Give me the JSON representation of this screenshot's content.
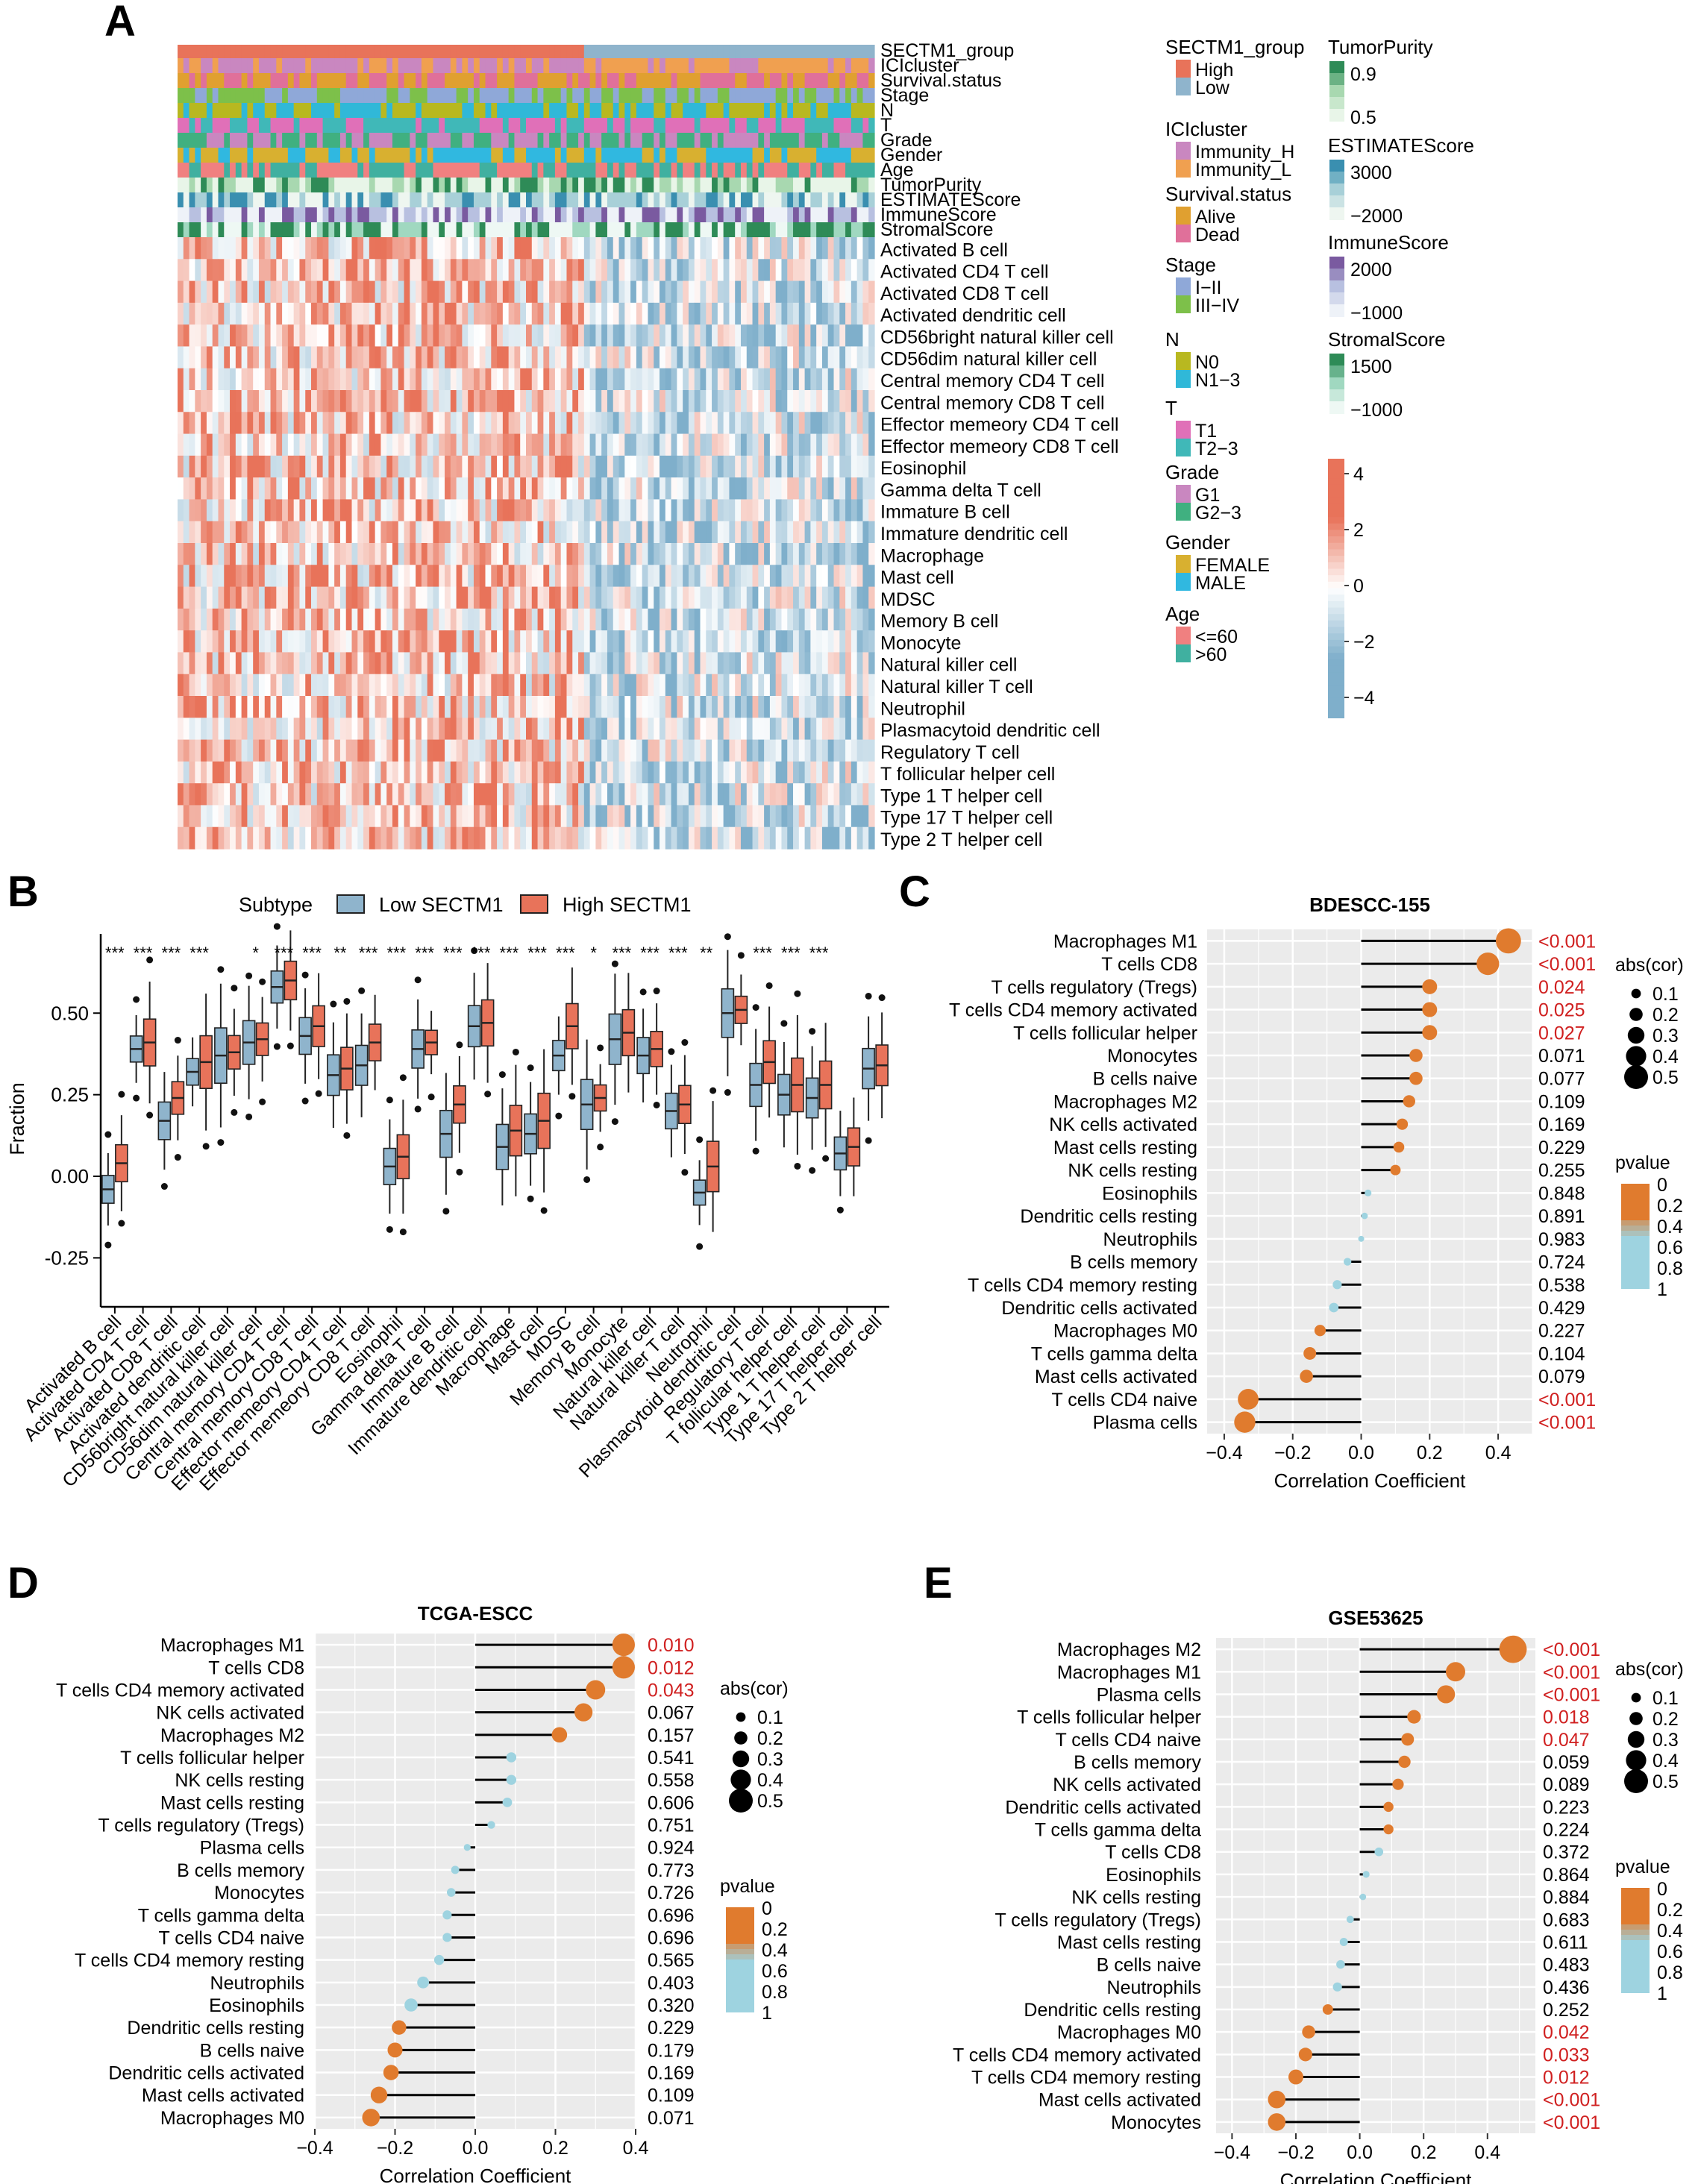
{
  "panel_letters": [
    "A",
    "B",
    "C",
    "D",
    "E"
  ],
  "colors": {
    "high": "#E8735A",
    "low": "#8FB4CC",
    "orange": "#E07B2E",
    "lightblue": "#9ED3E0",
    "sig_red": "#D02020",
    "gridbg": "#EBEBEB",
    "heat_high": "#E8735A",
    "heat_mid": "#FFFFFF",
    "heat_low": "#7FAFCB"
  },
  "chart_data": [
    {
      "panel": "A",
      "type": "heatmap",
      "annotation_rows": [
        "SECTM1_group",
        "ICIcluster",
        "Survival.status",
        "Stage",
        "N",
        "T",
        "Grade",
        "Gender",
        "Age",
        "TumorPurity",
        "ESTIMATEScore",
        "ImmuneScore",
        "StromalScore"
      ],
      "rows": [
        "Activated B cell",
        "Activated CD4 T cell",
        "Activated CD8 T cell",
        "Activated dendritic cell",
        "CD56bright natural killer cell",
        "CD56dim natural killer cell",
        "Central memory CD4 T cell",
        "Central memory CD8 T cell",
        "Effector memeory CD4 T cell",
        "Effector memeory CD8 T cell",
        "Eosinophil",
        "Gamma delta T cell",
        "Immature  B cell",
        "Immature dendritic cell",
        "Macrophage",
        "Mast cell",
        "MDSC",
        "Memory B cell",
        "Monocyte",
        "Natural killer cell",
        "Natural killer T cell",
        "Neutrophil",
        "Plasmacytoid dendritic cell",
        "Regulatory T cell",
        "T follicular helper cell",
        "Type 1 T helper cell",
        "Type 17 T helper cell",
        "Type 2 T helper cell"
      ],
      "legends": [
        {
          "title": "SECTM1_group",
          "items": [
            {
              "label": "High",
              "color": "#E8735A"
            },
            {
              "label": "Low",
              "color": "#8FB4CC"
            }
          ]
        },
        {
          "title": "ICIcluster",
          "items": [
            {
              "label": "Immunity_H",
              "color": "#C987C0"
            },
            {
              "label": "Immunity_L",
              "color": "#F0A050"
            }
          ]
        },
        {
          "title": "Survival.status",
          "items": [
            {
              "label": "Alive",
              "color": "#E0A030"
            },
            {
              "label": "Dead",
              "color": "#E0709A"
            }
          ]
        },
        {
          "title": "Stage",
          "items": [
            {
              "label": "I−II",
              "color": "#8FA8D8"
            },
            {
              "label": "III−IV",
              "color": "#7DC04A"
            }
          ]
        },
        {
          "title": "N",
          "items": [
            {
              "label": "N0",
              "color": "#B8B820"
            },
            {
              "label": "N1−3",
              "color": "#30B8D8"
            }
          ]
        },
        {
          "title": "T",
          "items": [
            {
              "label": "T1",
              "color": "#E070B8"
            },
            {
              "label": "T2−3",
              "color": "#40B8B8"
            }
          ]
        },
        {
          "title": "Grade",
          "items": [
            {
              "label": "G1",
              "color": "#C987C0"
            },
            {
              "label": "G2−3",
              "color": "#40B080"
            }
          ]
        },
        {
          "title": "Gender",
          "items": [
            {
              "label": "FEMALE",
              "color": "#D8B030"
            },
            {
              "label": "MALE",
              "color": "#30B8E0"
            }
          ]
        },
        {
          "title": "Age",
          "items": [
            {
              "label": "<=60",
              "color": "#F08080"
            },
            {
              "label": ">60",
              "color": "#40B0A0"
            }
          ]
        }
      ],
      "continuous_legends": [
        {
          "title": "TumorPurity",
          "ticks": [
            "0.9",
            "0.5"
          ],
          "colors": [
            "#2E8B57",
            "#A8D8B0",
            "#E8F5E8"
          ]
        },
        {
          "title": "ESTIMATEScore",
          "ticks": [
            "3000",
            "−2000"
          ],
          "colors": [
            "#3A8FB0",
            "#A8D0D8",
            "#EEF6F0"
          ]
        },
        {
          "title": "ImmuneScore",
          "ticks": [
            "2000",
            "−1000"
          ],
          "colors": [
            "#7A5AA0",
            "#B8C0E0",
            "#EEF2F8"
          ]
        },
        {
          "title": "StromalScore",
          "ticks": [
            "1500",
            "−1000"
          ],
          "colors": [
            "#2E8B57",
            "#A0D8C0",
            "#EEF8F4"
          ]
        }
      ],
      "colorbar": {
        "ticks": [
          "4",
          "2",
          "0",
          "−2",
          "−4"
        ],
        "range": [
          -4.5,
          4.5
        ]
      }
    },
    {
      "panel": "B",
      "type": "box",
      "legend_title": "Subtype",
      "series": [
        {
          "name": "Low SECTM1",
          "color": "#8FB4CC"
        },
        {
          "name": "High SECTM1",
          "color": "#E8735A"
        }
      ],
      "ylabel": "Fraction",
      "ylim": [
        -0.4,
        0.72
      ],
      "yticks": [
        "-0.25",
        "0.00",
        "0.25",
        "0.50"
      ],
      "categories": [
        "Activated B cell",
        "Activated CD4 T cell",
        "Activated CD8 T cell",
        "Activated dendritic cell",
        "CD56bright natural killer cell",
        "CD56dim natural killer cell",
        "Central memory CD4 T cell",
        "Central memory CD8 T cell",
        "Effector memeory CD4 T cell",
        "Effector memeory CD8 T cell",
        "Eosinophil",
        "Gamma delta T cell",
        "Immature  B cell",
        "Immature dendritic cell",
        "Macrophage",
        "Mast cell",
        "MDSC",
        "Memory B cell",
        "Monocyte",
        "Natural killer cell",
        "Natural killer T cell",
        "Neutrophil",
        "Plasmacytoid dendritic cell",
        "Regulatory T cell",
        "T follicular helper cell",
        "Type 1 T helper cell",
        "Type 17 T helper cell",
        "Type 2 T helper cell"
      ],
      "significance": [
        "***",
        "***",
        "***",
        "***",
        "",
        "*",
        "***",
        "***",
        "**",
        "***",
        "***",
        "***",
        "***",
        "***",
        "***",
        "***",
        "***",
        "*",
        "***",
        "***",
        "***",
        "**",
        "",
        "***",
        "***",
        "***",
        "",
        ""
      ],
      "low_medians": [
        -0.04,
        0.39,
        0.17,
        0.32,
        0.37,
        0.41,
        0.58,
        0.43,
        0.31,
        0.34,
        0.03,
        0.39,
        0.13,
        0.46,
        0.09,
        0.13,
        0.37,
        0.22,
        0.42,
        0.37,
        0.2,
        -0.05,
        0.5,
        0.28,
        0.25,
        0.24,
        0.07,
        0.33
      ],
      "high_medians": [
        0.04,
        0.41,
        0.24,
        0.35,
        0.38,
        0.42,
        0.6,
        0.46,
        0.33,
        0.41,
        0.06,
        0.41,
        0.22,
        0.47,
        0.14,
        0.17,
        0.46,
        0.24,
        0.44,
        0.39,
        0.22,
        0.03,
        0.51,
        0.35,
        0.28,
        0.28,
        0.09,
        0.34
      ]
    },
    {
      "panel": "C",
      "type": "lollipop",
      "title": "BDESCC-155",
      "xlabel": "Correlation Coefficient",
      "xlim": [
        -0.45,
        0.5
      ],
      "xticks": [
        "−0.4",
        "−0.2",
        "0.0",
        "0.2",
        "0.4"
      ],
      "size_legend_title": "abs(cor)",
      "size_legend": [
        "0.1",
        "0.2",
        "0.3",
        "0.4",
        "0.5"
      ],
      "color_legend_title": "pvalue",
      "color_legend": [
        "0",
        "0.2",
        "0.4",
        "0.6",
        "0.8",
        "1"
      ],
      "labels": [
        "Macrophages M1",
        "T cells CD8",
        "T cells regulatory (Tregs)",
        "T cells CD4 memory activated",
        "T cells follicular helper",
        "Monocytes",
        "B cells naive",
        "Macrophages M2",
        "NK cells activated",
        "Mast cells resting",
        "NK cells resting",
        "Eosinophils",
        "Dendritic cells resting",
        "Neutrophils",
        "B cells memory",
        "T cells CD4 memory resting",
        "Dendritic cells activated",
        "Macrophages M0",
        "T cells gamma delta",
        "Mast cells activated",
        "T cells CD4 naive",
        "Plasma cells"
      ],
      "values": [
        0.43,
        0.37,
        0.2,
        0.2,
        0.2,
        0.16,
        0.16,
        0.14,
        0.12,
        0.11,
        0.1,
        0.02,
        0.01,
        0.0,
        -0.04,
        -0.07,
        -0.08,
        -0.12,
        -0.15,
        -0.16,
        -0.33,
        -0.34
      ],
      "pvalues": [
        "<0.001",
        "<0.001",
        "0.024",
        "0.025",
        "0.027",
        "0.071",
        "0.077",
        "0.109",
        "0.169",
        "0.229",
        "0.255",
        "0.848",
        "0.891",
        "0.983",
        "0.724",
        "0.538",
        "0.429",
        "0.227",
        "0.104",
        "0.079",
        "<0.001",
        "<0.001"
      ]
    },
    {
      "panel": "D",
      "type": "lollipop",
      "title": "TCGA-ESCC",
      "xlabel": "Correlation Coefficient",
      "xlim": [
        -0.4,
        0.4
      ],
      "xticks": [
        "−0.4",
        "−0.2",
        "0.0",
        "0.2",
        "0.4"
      ],
      "size_legend_title": "abs(cor)",
      "size_legend": [
        "0.1",
        "0.2",
        "0.3",
        "0.4",
        "0.5"
      ],
      "color_legend_title": "pvalue",
      "color_legend": [
        "0",
        "0.2",
        "0.4",
        "0.6",
        "0.8",
        "1"
      ],
      "labels": [
        "Macrophages M1",
        "T cells CD8",
        "T cells CD4 memory activated",
        "NK cells activated",
        "Macrophages M2",
        "T cells follicular helper",
        "NK cells resting",
        "Mast cells resting",
        "T cells regulatory (Tregs)",
        "Plasma cells",
        "B cells memory",
        "Monocytes",
        "T cells gamma delta",
        "T cells CD4 naive",
        "T cells CD4 memory resting",
        "Neutrophils",
        "Eosinophils",
        "Dendritic cells resting",
        "B cells naive",
        "Dendritic cells activated",
        "Mast cells activated",
        "Macrophages M0"
      ],
      "values": [
        0.37,
        0.37,
        0.3,
        0.27,
        0.21,
        0.09,
        0.09,
        0.08,
        0.04,
        -0.02,
        -0.05,
        -0.06,
        -0.07,
        -0.07,
        -0.09,
        -0.13,
        -0.16,
        -0.19,
        -0.2,
        -0.21,
        -0.24,
        -0.26
      ],
      "pvalues": [
        "0.010",
        "0.012",
        "0.043",
        "0.067",
        "0.157",
        "0.541",
        "0.558",
        "0.606",
        "0.751",
        "0.924",
        "0.773",
        "0.726",
        "0.696",
        "0.696",
        "0.565",
        "0.403",
        "0.320",
        "0.229",
        "0.179",
        "0.169",
        "0.109",
        "0.071"
      ]
    },
    {
      "panel": "E",
      "type": "lollipop",
      "title": "GSE53625",
      "xlabel": "Correlation Coefficient",
      "xlim": [
        -0.45,
        0.55
      ],
      "xticks": [
        "−0.4",
        "−0.2",
        "0.0",
        "0.2",
        "0.4"
      ],
      "size_legend_title": "abs(cor)",
      "size_legend": [
        "0.1",
        "0.2",
        "0.3",
        "0.4",
        "0.5"
      ],
      "color_legend_title": "pvalue",
      "color_legend": [
        "0",
        "0.2",
        "0.4",
        "0.6",
        "0.8",
        "1"
      ],
      "labels": [
        "Macrophages M2",
        "Macrophages M1",
        "Plasma cells",
        "T cells follicular helper",
        "T cells CD4 naive",
        "B cells memory",
        "NK cells activated",
        "Dendritic cells activated",
        "T cells gamma delta",
        "T cells CD8",
        "Eosinophils",
        "NK cells resting",
        "T cells regulatory (Tregs)",
        "Mast cells resting",
        "B cells naive",
        "Neutrophils",
        "Dendritic cells resting",
        "Macrophages M0",
        "T cells CD4 memory activated",
        "T cells CD4 memory resting",
        "Mast cells activated",
        "Monocytes"
      ],
      "values": [
        0.48,
        0.3,
        0.27,
        0.17,
        0.15,
        0.14,
        0.12,
        0.09,
        0.09,
        0.06,
        0.02,
        0.01,
        -0.03,
        -0.05,
        -0.06,
        -0.07,
        -0.1,
        -0.16,
        -0.17,
        -0.2,
        -0.26,
        -0.26
      ],
      "pvalues": [
        "<0.001",
        "<0.001",
        "<0.001",
        "0.018",
        "0.047",
        "0.059",
        "0.089",
        "0.223",
        "0.224",
        "0.372",
        "0.864",
        "0.884",
        "0.683",
        "0.611",
        "0.483",
        "0.436",
        "0.252",
        "0.042",
        "0.033",
        "0.012",
        "<0.001",
        "<0.001"
      ]
    }
  ]
}
